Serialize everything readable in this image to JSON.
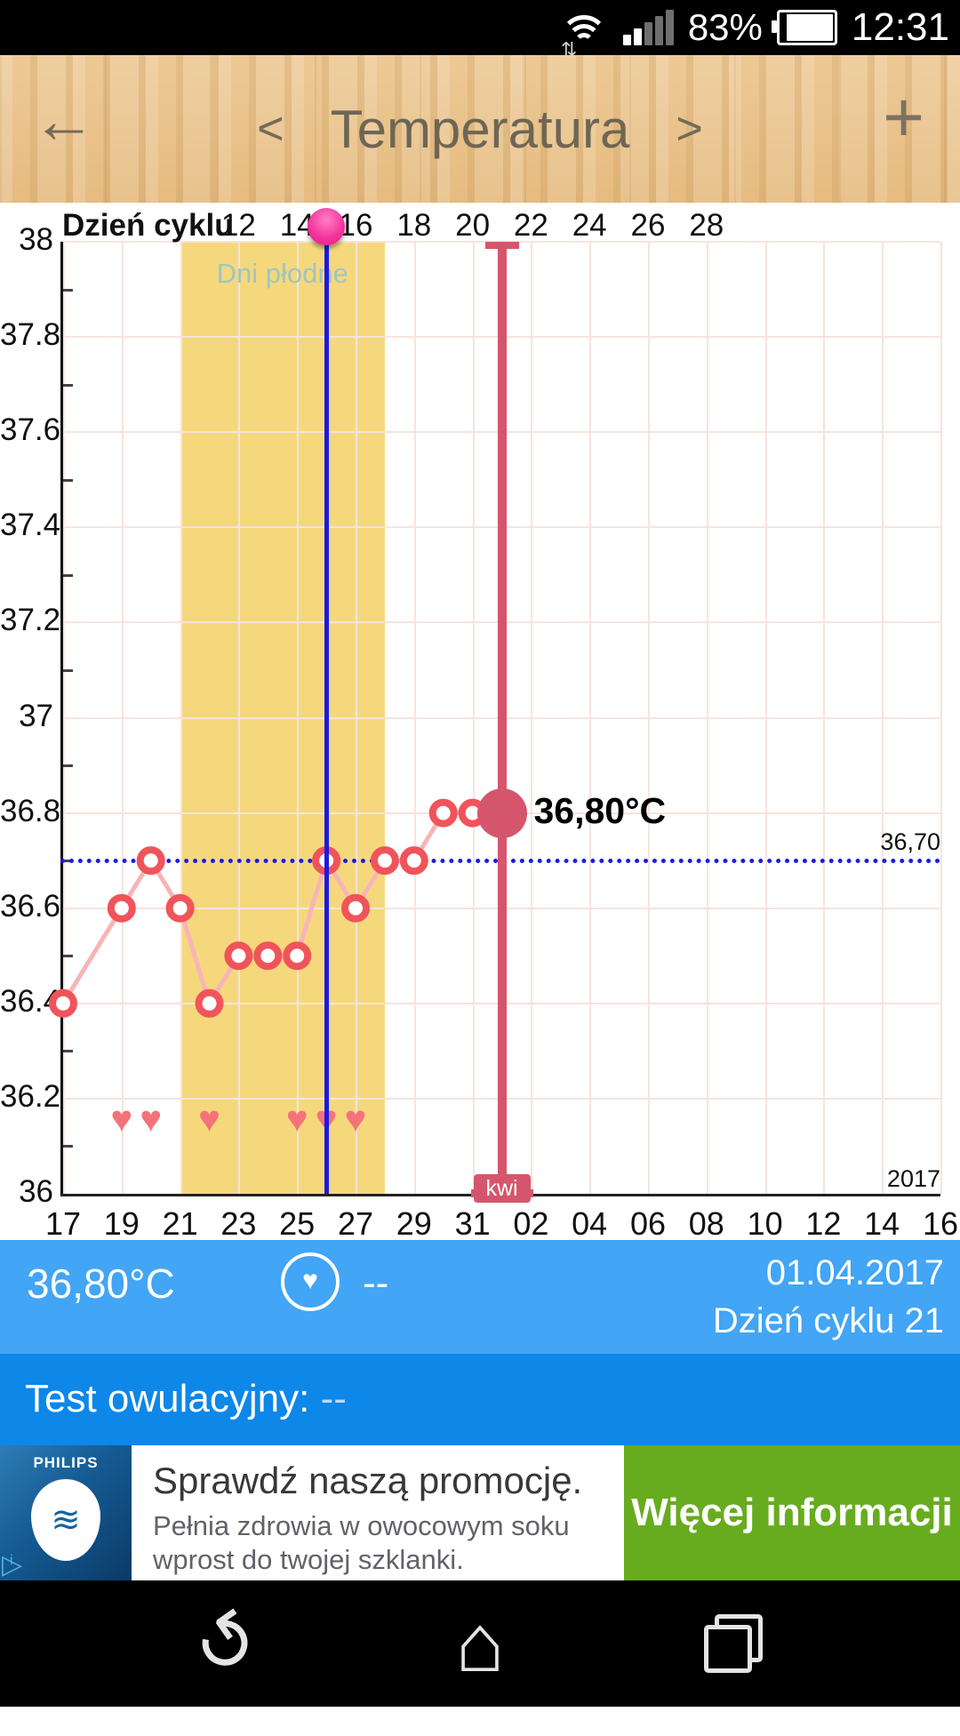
{
  "status_bar": {
    "battery_percent": "83%",
    "time": "12:31"
  },
  "header": {
    "back_icon": "←",
    "prev_label": "<",
    "title": "Temperatura",
    "next_label": ">",
    "add_label": "+"
  },
  "chart_data": {
    "type": "line",
    "title": "Temperatura",
    "y_axis": {
      "min": 36,
      "max": 38,
      "tick_step": 0.2,
      "labels": [
        "38",
        "37.8",
        "37.6",
        "37.4",
        "37.2",
        "37",
        "36.8",
        "36.6",
        "36.4",
        "36.2",
        "36"
      ]
    },
    "x_axis": {
      "top_axis_title": "Dzień cyklu",
      "top_labels": [
        "12",
        "14",
        "16",
        "18",
        "20",
        "22",
        "24",
        "26",
        "28"
      ],
      "top_label_days": [
        6,
        8,
        10,
        12,
        14,
        16,
        18,
        20,
        22
      ],
      "bottom_labels": [
        "17",
        "19",
        "21",
        "23",
        "25",
        "27",
        "29",
        "31",
        "02",
        "04",
        "06",
        "08",
        "10",
        "12",
        "14",
        "16"
      ],
      "bottom_label_days": [
        0,
        2,
        4,
        6,
        8,
        10,
        12,
        14,
        16,
        18,
        20,
        22,
        24,
        26,
        28,
        30
      ],
      "year_label": "2017"
    },
    "series": [
      {
        "name": "temperatura",
        "points": [
          {
            "day": 0,
            "t": 36.4
          },
          {
            "day": 2,
            "t": 36.6
          },
          {
            "day": 3,
            "t": 36.7
          },
          {
            "day": 4,
            "t": 36.6
          },
          {
            "day": 5,
            "t": 36.4
          },
          {
            "day": 6,
            "t": 36.5
          },
          {
            "day": 7,
            "t": 36.5
          },
          {
            "day": 8,
            "t": 36.5
          },
          {
            "day": 9,
            "t": 36.7
          },
          {
            "day": 10,
            "t": 36.6
          },
          {
            "day": 11,
            "t": 36.7
          },
          {
            "day": 12,
            "t": 36.7
          },
          {
            "day": 13,
            "t": 36.8
          },
          {
            "day": 14,
            "t": 36.8
          },
          {
            "day": 15,
            "t": 36.8
          }
        ]
      }
    ],
    "selected_point": {
      "day": 15,
      "t": 36.8,
      "label": "36,80°C"
    },
    "month_marker": {
      "day": 15,
      "label": "kwi"
    },
    "reference_line": {
      "value": 36.7,
      "label": "36,70"
    },
    "selected_day_line": {
      "day": 9
    },
    "top_axis_dot_day": 9,
    "fertile_band": {
      "start_day": 4,
      "end_day": 11,
      "label": "Dni płodne"
    },
    "hearts_days": [
      2,
      3,
      5,
      8,
      9,
      10
    ],
    "hearts_y_value": 36.15,
    "colors": {
      "band_yellow": "#f6d87c",
      "band_label": "#9fc6c2",
      "line_pink": "#f8b4b8",
      "marker_stroke": "#f0545a",
      "big_dot": "#d5566c",
      "selection_blue": "#1a1ae6",
      "heart": "#f4737a",
      "grid": "#f5e4de"
    }
  },
  "info_bar": {
    "temperature": "36,80°C",
    "heart_icon": "♥",
    "mood_value": "--",
    "date": "01.04.2017",
    "cycle_day": "Dzień cyklu 21"
  },
  "ovulation_bar": {
    "label": "Test owulacyjny:",
    "value": "--"
  },
  "ad": {
    "brand": "PHILIPS",
    "headline": "Sprawdź naszą promocję.",
    "body_line1": "Pełnia zdrowia w owocowym soku",
    "body_line2": "wprost do twojej szklanki.",
    "cta": "Więcej informacji",
    "cta_color": "#67ac1f"
  },
  "nav_bar": {
    "back_icon": "↺",
    "home_icon": "⌂"
  }
}
